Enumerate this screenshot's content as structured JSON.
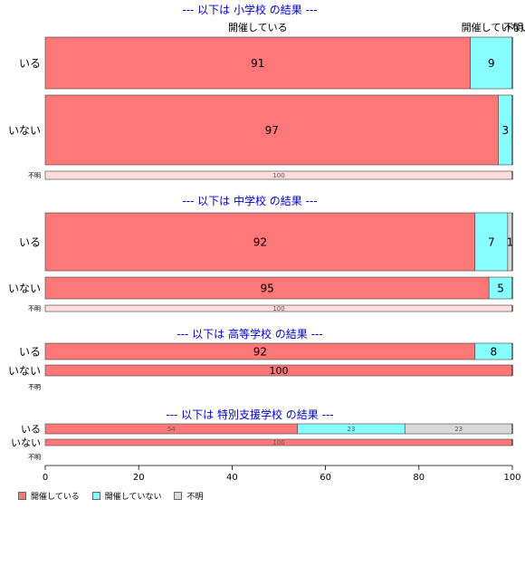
{
  "chart_data": {
    "type": "bar",
    "orientation": "horizontal",
    "stacked": true,
    "xlim": [
      0,
      100
    ],
    "xticks": [
      0,
      20,
      40,
      60,
      80,
      100
    ],
    "legend_position": "bottom-left",
    "series_colors": [
      "#FF7777",
      "#88FFFF",
      "#D9D9D9"
    ],
    "legend": [
      "開催している",
      "開催していない",
      "不明"
    ],
    "column_headers": [
      "開催している",
      "開催していない",
      "不明"
    ],
    "panels": [
      {
        "title": "--- 以下は 小学校 の結果 ---",
        "rows": [
          {
            "label": "いる",
            "values": [
              91,
              9,
              0
            ]
          },
          {
            "label": "いない",
            "values": [
              97,
              3,
              0
            ]
          },
          {
            "label": "不明",
            "values": [
              100,
              0,
              0
            ]
          }
        ]
      },
      {
        "title": "--- 以下は 中学校 の結果 ---",
        "rows": [
          {
            "label": "いる",
            "values": [
              92,
              7,
              1
            ]
          },
          {
            "label": "いない",
            "values": [
              95,
              5,
              0
            ]
          },
          {
            "label": "不明",
            "values": [
              100,
              0,
              0
            ]
          }
        ]
      },
      {
        "title": "--- 以下は 高等学校 の結果 ---",
        "rows": [
          {
            "label": "いる",
            "values": [
              92,
              8,
              0
            ]
          },
          {
            "label": "いない",
            "values": [
              100,
              0,
              0
            ]
          },
          {
            "label": "不明",
            "values": []
          }
        ]
      },
      {
        "title": "--- 以下は 特別支援学校 の結果 ---",
        "rows": [
          {
            "label": "いる",
            "values": [
              54,
              23,
              23
            ]
          },
          {
            "label": "いない",
            "values": [
              100,
              0,
              0
            ]
          },
          {
            "label": "不明",
            "values": []
          }
        ]
      }
    ]
  }
}
